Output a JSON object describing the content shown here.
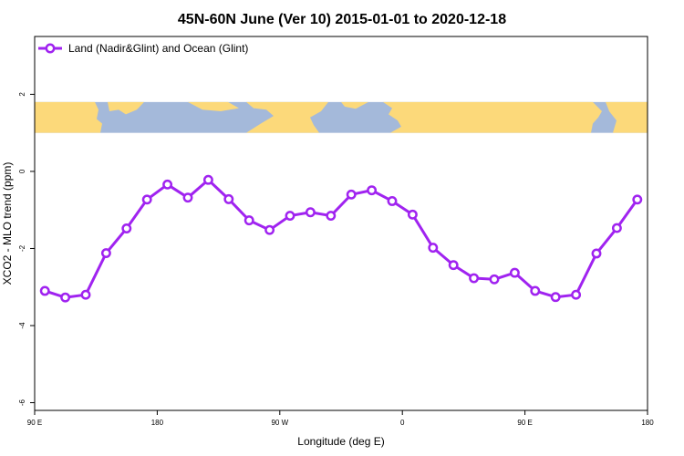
{
  "chart_data": {
    "type": "line",
    "title": "45N-60N June (Ver 10)   2015-01-01 to 2020-12-18",
    "xlabel": "Longitude (deg E)",
    "ylabel": "XCO2 - MLO trend (ppm)",
    "x_ticks": [
      {
        "value": 90,
        "label": "90 E"
      },
      {
        "value": 180,
        "label": "180"
      },
      {
        "value": 270,
        "label": "90 W"
      },
      {
        "value": 360,
        "label": "0"
      },
      {
        "value": 450,
        "label": "90 E"
      },
      {
        "value": 540,
        "label": "180"
      }
    ],
    "y_ticks": [
      {
        "value": 2,
        "label": "2"
      },
      {
        "value": 0,
        "label": "0"
      },
      {
        "value": -2,
        "label": "-2"
      },
      {
        "value": -4,
        "label": "-4"
      },
      {
        "value": -6,
        "label": "-6"
      }
    ],
    "xlim": [
      90,
      540
    ],
    "ylim": [
      -6.2,
      3.5
    ],
    "map_band_y": [
      1.0,
      1.8
    ],
    "legend_position": "top-left",
    "map_colors": {
      "land": "#fcd97a",
      "ocean": "#a4b9da"
    },
    "series": [
      {
        "name": "Land (Nadir&Glint) and Ocean (Glint)",
        "color": "#a023f0",
        "x": [
          97.5,
          112.5,
          127.5,
          142.5,
          157.5,
          172.5,
          187.5,
          202.5,
          217.5,
          232.5,
          247.5,
          262.5,
          277.5,
          292.5,
          307.5,
          322.5,
          337.5,
          352.5,
          367.5,
          382.5,
          397.5,
          412.5,
          427.5,
          442.5,
          457.5,
          472.5,
          487.5,
          502.5,
          517.5,
          532.5
        ],
        "values": [
          -3.1,
          -3.27,
          -3.2,
          -2.12,
          -1.48,
          -0.73,
          -0.34,
          -0.68,
          -0.22,
          -0.72,
          -1.27,
          -1.52,
          -1.15,
          -1.06,
          -1.15,
          -0.6,
          -0.49,
          -0.77,
          -1.12,
          -1.98,
          -2.43,
          -2.77,
          -2.8,
          -2.63,
          -3.1,
          -3.26,
          -3.2,
          -2.13,
          -1.47,
          -0.73
        ]
      }
    ]
  }
}
